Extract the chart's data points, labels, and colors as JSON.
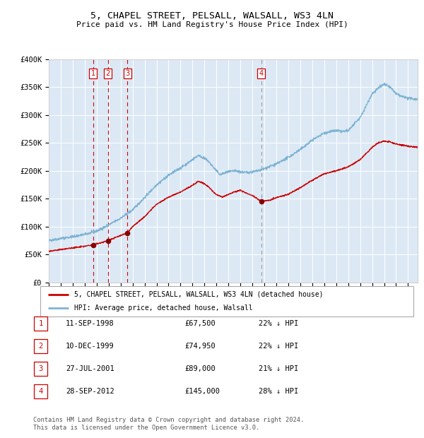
{
  "title": "5, CHAPEL STREET, PELSALL, WALSALL, WS3 4LN",
  "subtitle": "Price paid vs. HM Land Registry's House Price Index (HPI)",
  "bg_color": "#dce9f5",
  "grid_color": "#ffffff",
  "sale_dates": [
    1998.69,
    1999.94,
    2001.57,
    2012.74
  ],
  "sale_prices": [
    67500,
    74950,
    89000,
    145000
  ],
  "red_line_color": "#cc0000",
  "blue_line_color": "#7fb3d3",
  "marker_color": "#880000",
  "legend_entries": [
    "5, CHAPEL STREET, PELSALL, WALSALL, WS3 4LN (detached house)",
    "HPI: Average price, detached house, Walsall"
  ],
  "table_rows": [
    [
      "1",
      "11-SEP-1998",
      "£67,500",
      "22% ↓ HPI"
    ],
    [
      "2",
      "10-DEC-1999",
      "£74,950",
      "22% ↓ HPI"
    ],
    [
      "3",
      "27-JUL-2001",
      "£89,000",
      "21% ↓ HPI"
    ],
    [
      "4",
      "28-SEP-2012",
      "£145,000",
      "28% ↓ HPI"
    ]
  ],
  "footer_text": "Contains HM Land Registry data © Crown copyright and database right 2024.\nThis data is licensed under the Open Government Licence v3.0.",
  "ylim": [
    0,
    400000
  ],
  "yticks": [
    0,
    50000,
    100000,
    150000,
    200000,
    250000,
    300000,
    350000,
    400000
  ],
  "ytick_labels": [
    "£0",
    "£50K",
    "£100K",
    "£150K",
    "£200K",
    "£250K",
    "£300K",
    "£350K",
    "£400K"
  ],
  "xlim_start": 1995.0,
  "xlim_end": 2025.8,
  "hpi_anchors": [
    [
      1995.0,
      75000
    ],
    [
      1996.0,
      79000
    ],
    [
      1997.0,
      82000
    ],
    [
      1998.0,
      86000
    ],
    [
      1999.0,
      92000
    ],
    [
      2000.0,
      103000
    ],
    [
      2001.0,
      115000
    ],
    [
      2002.0,
      130000
    ],
    [
      2003.0,
      152000
    ],
    [
      2004.0,
      175000
    ],
    [
      2005.0,
      192000
    ],
    [
      2006.0,
      205000
    ],
    [
      2007.0,
      220000
    ],
    [
      2007.5,
      228000
    ],
    [
      2008.3,
      218000
    ],
    [
      2008.8,
      205000
    ],
    [
      2009.3,
      193000
    ],
    [
      2009.8,
      197000
    ],
    [
      2010.5,
      200000
    ],
    [
      2011.0,
      198000
    ],
    [
      2011.5,
      197000
    ],
    [
      2012.0,
      198000
    ],
    [
      2012.5,
      200000
    ],
    [
      2013.0,
      204000
    ],
    [
      2014.0,
      212000
    ],
    [
      2015.0,
      224000
    ],
    [
      2016.0,
      238000
    ],
    [
      2017.0,
      255000
    ],
    [
      2018.0,
      268000
    ],
    [
      2019.0,
      272000
    ],
    [
      2019.5,
      270000
    ],
    [
      2020.0,
      272000
    ],
    [
      2021.0,
      295000
    ],
    [
      2022.0,
      338000
    ],
    [
      2022.5,
      348000
    ],
    [
      2023.0,
      355000
    ],
    [
      2023.5,
      350000
    ],
    [
      2024.0,
      338000
    ],
    [
      2024.5,
      333000
    ],
    [
      2025.0,
      330000
    ],
    [
      2025.8,
      328000
    ]
  ],
  "red_anchors": [
    [
      1995.0,
      56000
    ],
    [
      1996.0,
      59000
    ],
    [
      1997.0,
      62000
    ],
    [
      1998.0,
      65000
    ],
    [
      1998.69,
      67500
    ],
    [
      1999.5,
      72000
    ],
    [
      1999.94,
      74950
    ],
    [
      2000.5,
      80000
    ],
    [
      2001.57,
      89000
    ],
    [
      2002.0,
      100000
    ],
    [
      2003.0,
      118000
    ],
    [
      2004.0,
      140000
    ],
    [
      2005.0,
      153000
    ],
    [
      2006.0,
      162000
    ],
    [
      2007.0,
      174000
    ],
    [
      2007.5,
      181000
    ],
    [
      2008.0,
      177000
    ],
    [
      2008.5,
      168000
    ],
    [
      2009.0,
      157000
    ],
    [
      2009.5,
      153000
    ],
    [
      2010.0,
      158000
    ],
    [
      2010.5,
      162000
    ],
    [
      2011.0,
      165000
    ],
    [
      2011.5,
      160000
    ],
    [
      2012.0,
      156000
    ],
    [
      2012.74,
      145000
    ],
    [
      2013.0,
      146000
    ],
    [
      2013.5,
      148000
    ],
    [
      2014.0,
      152000
    ],
    [
      2015.0,
      158000
    ],
    [
      2016.0,
      170000
    ],
    [
      2017.0,
      183000
    ],
    [
      2018.0,
      195000
    ],
    [
      2019.0,
      200000
    ],
    [
      2020.0,
      207000
    ],
    [
      2021.0,
      220000
    ],
    [
      2022.0,
      242000
    ],
    [
      2022.5,
      250000
    ],
    [
      2023.0,
      253000
    ],
    [
      2023.5,
      252000
    ],
    [
      2024.0,
      248000
    ],
    [
      2024.5,
      246000
    ],
    [
      2025.0,
      244000
    ],
    [
      2025.8,
      242000
    ]
  ]
}
